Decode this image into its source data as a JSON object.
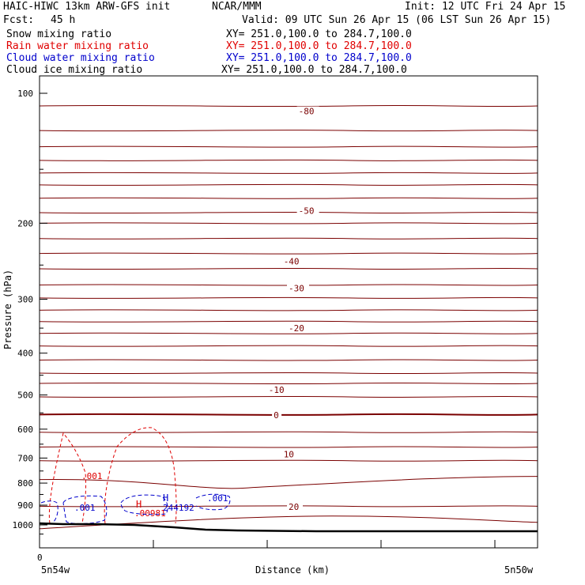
{
  "header": {
    "model": "HAIC-HIWC 13km ARW-GFS init",
    "org": "NCAR/MMM",
    "init": "Init: 12 UTC Fri 24 Apr 15",
    "fcst_label": "Fcst:",
    "fcst_value": "45 h",
    "valid": "Valid: 09 UTC Sun 26 Apr 15 (06 LST Sun 26 Apr 15)",
    "fields": [
      {
        "name": "Snow mixing ratio",
        "xy": "XY= 251.0,100.0 to 284.7,100.0",
        "color": "#000000"
      },
      {
        "name": "Rain water mixing ratio",
        "xy": "XY= 251.0,100.0 to 284.7,100.0",
        "color": "#e00000"
      },
      {
        "name": "Cloud water mixing ratio",
        "xy": "XY= 251.0,100.0 to 284.7,100.0",
        "color": "#0000cc"
      },
      {
        "name": "Cloud ice mixing ratio",
        "xy": "XY= 251.0,100.0 to 284.7,100.0",
        "color": "#000000"
      }
    ]
  },
  "chart_data": {
    "type": "line",
    "ylabel": "Pressure (hPa)",
    "xlabel": "Distance (km)",
    "x_left_label": "5n54w",
    "x_right_label": "5n50w",
    "x_zero_label": "0",
    "y_ticks": [
      100,
      200,
      300,
      400,
      500,
      600,
      700,
      800,
      900,
      1000
    ],
    "ylim": [
      1050,
      50
    ],
    "y_scale": "log",
    "temperature_color": "#7a0000",
    "isotherm_labels": [
      {
        "text": "-80",
        "p": 110,
        "xf": 0.52
      },
      {
        "text": "-50",
        "p": 187,
        "xf": 0.52
      },
      {
        "text": "-40",
        "p": 245,
        "xf": 0.49
      },
      {
        "text": "-30",
        "p": 283,
        "xf": 0.5
      },
      {
        "text": "-20",
        "p": 350,
        "xf": 0.5
      },
      {
        "text": "-10",
        "p": 486,
        "xf": 0.46
      },
      {
        "text": "0",
        "p": 556,
        "xf": 0.47
      },
      {
        "text": "10",
        "p": 685,
        "xf": 0.49
      },
      {
        "text": "20",
        "p": 907,
        "xf": 0.5
      }
    ],
    "isotherm_pressures": [
      107,
      122,
      133,
      143,
      153,
      163,
      175,
      189,
      200,
      217,
      235,
      255,
      278,
      298,
      318,
      338,
      360,
      385,
      415,
      445,
      470,
      505,
      555,
      610,
      660,
      710,
      785,
      905,
      995
    ],
    "rain_labels": [
      {
        "text": ".001",
        "p": 905
      },
      {
        "text": ".00981",
        "p": 985
      }
    ],
    "cloud_water_labels": [
      {
        "text": ".001",
        "p": 965
      },
      {
        "text": ".001",
        "p": 952
      },
      {
        "text": "244192",
        "p": 970
      }
    ],
    "high_markers": [
      {
        "text": "H",
        "color": "#e00000"
      },
      {
        "text": "H",
        "color": "#0000cc"
      }
    ]
  }
}
